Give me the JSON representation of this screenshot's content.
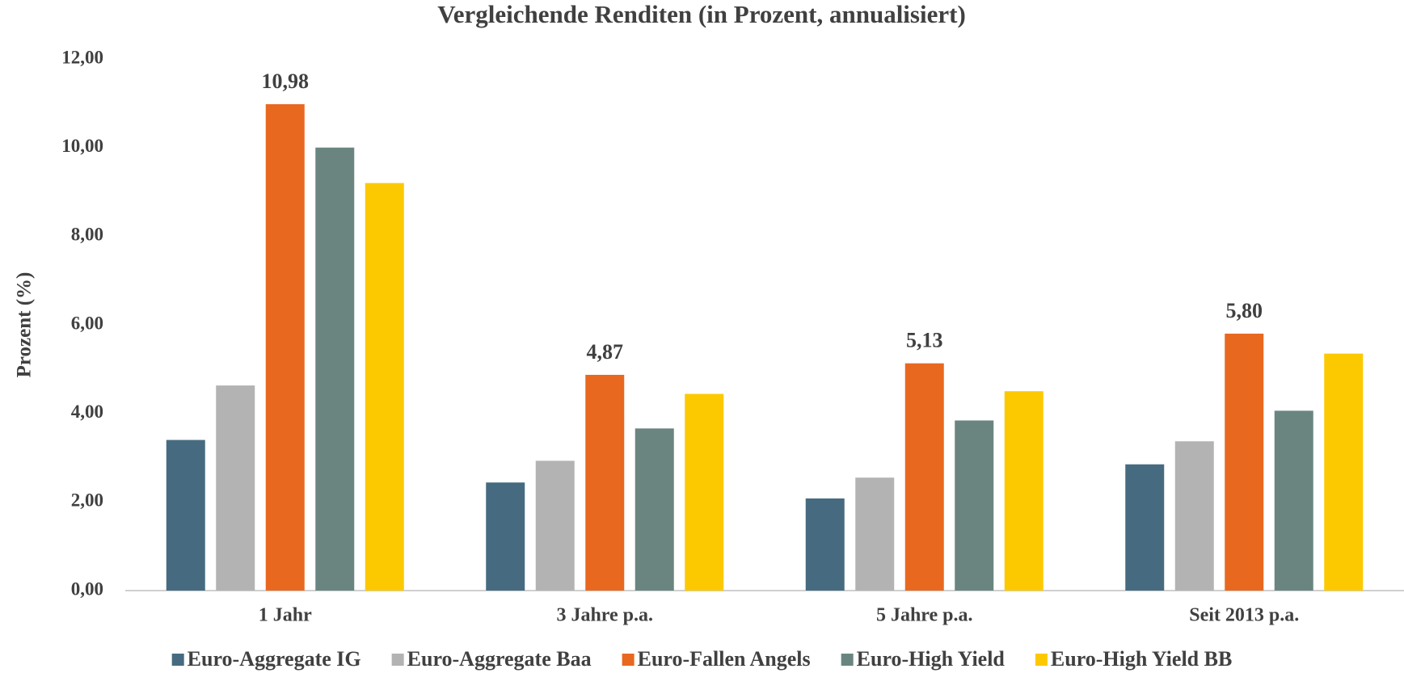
{
  "chart_data": {
    "type": "bar",
    "title": "Vergleichende Renditen (in Prozent, annualisiert)",
    "y_label": "Prozent (%)",
    "categories": [
      "1 Jahr",
      "3 Jahre p.a.",
      "5 Jahre p.a.",
      "Seit 2013 p.a."
    ],
    "series": [
      {
        "name": "Euro-Aggregate IG",
        "color": "#466b80",
        "values": [
          3.4,
          2.44,
          2.08,
          2.85
        ]
      },
      {
        "name": "Euro-Aggregate Baa",
        "color": "#b3b3b3",
        "values": [
          4.63,
          2.93,
          2.55,
          3.37
        ]
      },
      {
        "name": "Euro-Fallen Angels",
        "color": "#e96820",
        "values": [
          10.98,
          4.87,
          5.13,
          5.8
        ],
        "value_labels": [
          "10,98",
          "4,87",
          "5,13",
          "5,80"
        ]
      },
      {
        "name": "Euro-High Yield",
        "color": "#6a8580",
        "values": [
          10.0,
          3.66,
          3.84,
          4.06
        ]
      },
      {
        "name": "Euro-High Yield BB",
        "color": "#fcc900",
        "values": [
          9.2,
          4.44,
          4.5,
          5.35
        ]
      }
    ],
    "ylim": [
      0,
      12
    ],
    "yticks": [
      {
        "value": 0,
        "label": "0,00"
      },
      {
        "value": 2,
        "label": "2,00"
      },
      {
        "value": 4,
        "label": "4,00"
      },
      {
        "value": 6,
        "label": "6,00"
      },
      {
        "value": 8,
        "label": "8,00"
      },
      {
        "value": 10,
        "label": "10,00"
      },
      {
        "value": 12,
        "label": "12,00"
      }
    ],
    "legend": "bottom"
  }
}
